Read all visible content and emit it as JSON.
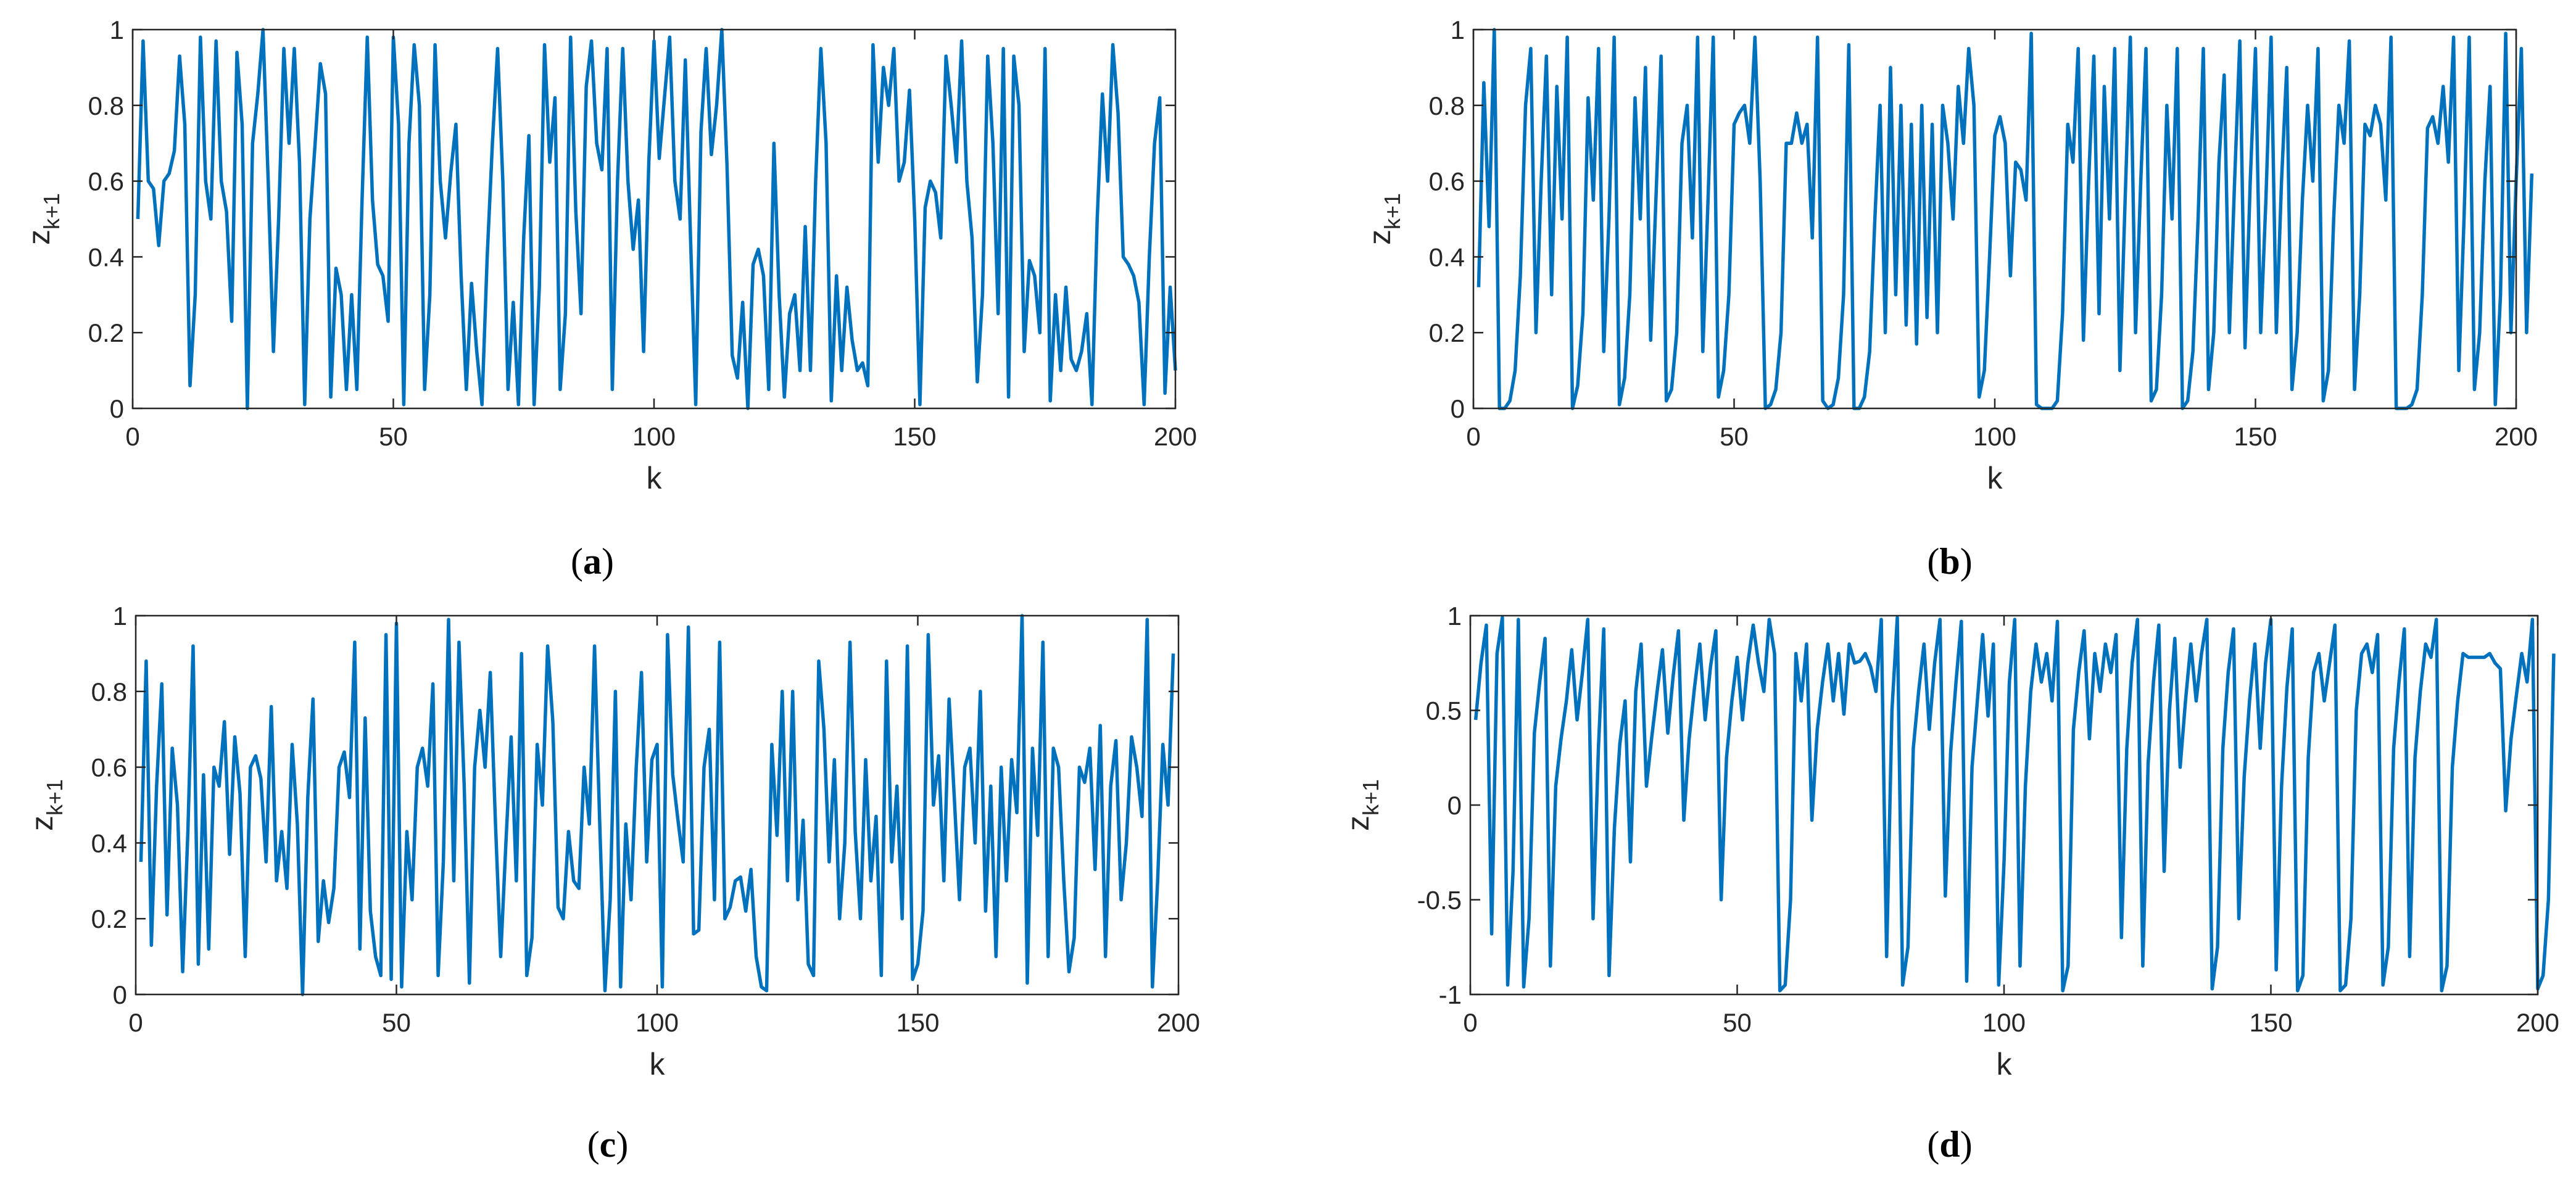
{
  "colors": {
    "series": "#0072BD",
    "axis": "#262626",
    "background": "#ffffff"
  },
  "chart_data": [
    {
      "id": "a",
      "panel_label": "a",
      "type": "line",
      "xlabel": "k",
      "ylabel_base": "z",
      "ylabel_sub": "k+1",
      "xlim": [
        0,
        200
      ],
      "ylim": [
        0,
        1
      ],
      "xticks": [
        0,
        50,
        100,
        150,
        200
      ],
      "xtick_labels": [
        "0",
        "50",
        "100",
        "150",
        "200"
      ],
      "yticks": [
        0,
        0.2,
        0.4,
        0.6,
        0.8,
        1
      ],
      "ytick_labels": [
        "0",
        "0.2",
        "0.4",
        "0.6",
        "0.8",
        "1"
      ],
      "grid": false,
      "series": [
        {
          "x_start": 1,
          "x_step": 1,
          "y": [
            0.5,
            0.97,
            0.6,
            0.58,
            0.43,
            0.6,
            0.62,
            0.68,
            0.93,
            0.75,
            0.06,
            0.3,
            0.98,
            0.6,
            0.5,
            0.97,
            0.6,
            0.52,
            0.23,
            0.94,
            0.75,
            0,
            0.7,
            0.83,
            1,
            0.6,
            0.15,
            0.5,
            0.95,
            0.7,
            0.95,
            0.65,
            0.01,
            0.5,
            0.7,
            0.91,
            0.83,
            0.03,
            0.37,
            0.3,
            0.05,
            0.3,
            0.05,
            0.55,
            0.98,
            0.55,
            0.38,
            0.35,
            0.23,
            0.98,
            0.75,
            0.01,
            0.7,
            0.96,
            0.8,
            0.05,
            0.3,
            0.96,
            0.6,
            0.45,
            0.62,
            0.75,
            0.35,
            0.05,
            0.33,
            0.15,
            0.01,
            0.4,
            0.7,
            0.95,
            0.6,
            0.05,
            0.28,
            0.01,
            0.45,
            0.72,
            0.01,
            0.32,
            0.96,
            0.65,
            0.82,
            0.05,
            0.25,
            0.98,
            0.52,
            0.25,
            0.85,
            0.97,
            0.7,
            0.63,
            0.95,
            0.05,
            0.6,
            0.95,
            0.6,
            0.42,
            0.55,
            0.15,
            0.65,
            0.97,
            0.66,
            0.82,
            0.98,
            0.6,
            0.5,
            0.92,
            0.45,
            0.01,
            0.73,
            0.95,
            0.67,
            0.8,
            1,
            0.64,
            0.14,
            0.08,
            0.28,
            0,
            0.38,
            0.42,
            0.35,
            0.05,
            0.7,
            0.3,
            0.03,
            0.25,
            0.3,
            0.1,
            0.48,
            0.1,
            0.6,
            0.95,
            0.7,
            0.02,
            0.35,
            0.1,
            0.32,
            0.18,
            0.1,
            0.12,
            0.06,
            0.96,
            0.65,
            0.9,
            0.8,
            0.95,
            0.6,
            0.65,
            0.84,
            0.5,
            0.01,
            0.53,
            0.6,
            0.57,
            0.45,
            0.93,
            0.8,
            0.65,
            0.97,
            0.6,
            0.45,
            0.07,
            0.3,
            0.93,
            0.7,
            0.25,
            0.95,
            0.03,
            0.93,
            0.8,
            0.15,
            0.39,
            0.35,
            0.2,
            0.95,
            0.02,
            0.3,
            0.1,
            0.32,
            0.13,
            0.1,
            0.15,
            0.25,
            0.01,
            0.5,
            0.83,
            0.6,
            0.96,
            0.78,
            0.4,
            0.38,
            0.35,
            0.28,
            0.01,
            0.4,
            0.7,
            0.82,
            0.04,
            0.32,
            0.1
          ]
        }
      ]
    },
    {
      "id": "b",
      "panel_label": "b",
      "type": "line",
      "xlabel": "k",
      "ylabel_base": "z",
      "ylabel_sub": "k+1",
      "xlim": [
        0,
        200
      ],
      "ylim": [
        0,
        1
      ],
      "xticks": [
        0,
        50,
        100,
        150,
        200
      ],
      "xtick_labels": [
        "0",
        "50",
        "100",
        "150",
        "200"
      ],
      "yticks": [
        0,
        0.2,
        0.4,
        0.6,
        0.8,
        1
      ],
      "ytick_labels": [
        "0",
        "0.2",
        "0.4",
        "0.6",
        "0.8",
        "1"
      ],
      "grid": false,
      "series": [
        {
          "x_start": 1,
          "x_step": 1,
          "y": [
            0.32,
            0.86,
            0.48,
            1,
            0,
            0,
            0.02,
            0.1,
            0.35,
            0.8,
            0.95,
            0.2,
            0.6,
            0.93,
            0.3,
            0.85,
            0.5,
            0.98,
            0,
            0.06,
            0.25,
            0.82,
            0.55,
            0.95,
            0.15,
            0.5,
            0.98,
            0.01,
            0.08,
            0.3,
            0.82,
            0.5,
            0.9,
            0.18,
            0.55,
            0.93,
            0.02,
            0.05,
            0.2,
            0.7,
            0.8,
            0.45,
            0.98,
            0.15,
            0.55,
            0.98,
            0.03,
            0.1,
            0.3,
            0.75,
            0.78,
            0.8,
            0.7,
            0.98,
            0.6,
            0,
            0.01,
            0.05,
            0.2,
            0.7,
            0.7,
            0.78,
            0.7,
            0.75,
            0.45,
            0.98,
            0.02,
            0,
            0.01,
            0.08,
            0.3,
            0.96,
            0,
            0,
            0.03,
            0.15,
            0.5,
            0.8,
            0.2,
            0.9,
            0.3,
            0.8,
            0.22,
            0.75,
            0.17,
            0.8,
            0.24,
            0.75,
            0.2,
            0.8,
            0.7,
            0.5,
            0.85,
            0.7,
            0.95,
            0.8,
            0.03,
            0.1,
            0.4,
            0.72,
            0.77,
            0.7,
            0.35,
            0.65,
            0.63,
            0.55,
            0.99,
            0.01,
            0,
            0,
            0,
            0.02,
            0.25,
            0.75,
            0.65,
            0.95,
            0.18,
            0.6,
            0.93,
            0.25,
            0.85,
            0.5,
            0.95,
            0.1,
            0.55,
            0.98,
            0.2,
            0.6,
            0.95,
            0.02,
            0.05,
            0.3,
            0.8,
            0.5,
            0.95,
            0,
            0.02,
            0.15,
            0.5,
            0.95,
            0.05,
            0.2,
            0.65,
            0.88,
            0.2,
            0.6,
            0.97,
            0.16,
            0.6,
            0.95,
            0.2,
            0.55,
            0.98,
            0.2,
            0.6,
            0.9,
            0.05,
            0.2,
            0.55,
            0.8,
            0.6,
            0.95,
            0.02,
            0.1,
            0.5,
            0.8,
            0.7,
            0.97,
            0.05,
            0.3,
            0.75,
            0.72,
            0.8,
            0.75,
            0.55,
            0.98,
            0,
            0,
            0,
            0.01,
            0.05,
            0.3,
            0.74,
            0.77,
            0.7,
            0.85,
            0.65,
            0.98,
            0.1,
            0.5,
            0.98,
            0.05,
            0.2,
            0.6,
            0.85,
            0.01,
            0.3,
            0.99,
            0.2,
            0.6,
            0.95,
            0.2,
            0.62
          ]
        }
      ]
    },
    {
      "id": "c",
      "panel_label": "c",
      "type": "line",
      "xlabel": "k",
      "ylabel_base": "z",
      "ylabel_sub": "k+1",
      "xlim": [
        0,
        200
      ],
      "ylim": [
        0,
        1
      ],
      "xticks": [
        0,
        50,
        100,
        150,
        200
      ],
      "xtick_labels": [
        "0",
        "50",
        "100",
        "150",
        "200"
      ],
      "yticks": [
        0,
        0.2,
        0.4,
        0.6,
        0.8,
        1
      ],
      "ytick_labels": [
        "0",
        "0.2",
        "0.4",
        "0.6",
        "0.8",
        "1"
      ],
      "grid": false,
      "series": [
        {
          "x_start": 1,
          "x_step": 1,
          "y": [
            0.35,
            0.88,
            0.13,
            0.55,
            0.82,
            0.21,
            0.65,
            0.5,
            0.06,
            0.43,
            0.92,
            0.08,
            0.58,
            0.12,
            0.6,
            0.55,
            0.72,
            0.37,
            0.68,
            0.53,
            0.1,
            0.6,
            0.63,
            0.57,
            0.35,
            0.76,
            0.3,
            0.43,
            0.28,
            0.66,
            0.45,
            0,
            0.52,
            0.78,
            0.14,
            0.3,
            0.19,
            0.28,
            0.6,
            0.64,
            0.52,
            0.93,
            0.12,
            0.73,
            0.22,
            0.1,
            0.05,
            0.95,
            0.04,
            0.98,
            0.02,
            0.43,
            0.25,
            0.6,
            0.65,
            0.55,
            0.82,
            0.05,
            0.35,
            0.99,
            0.3,
            0.93,
            0.55,
            0.03,
            0.6,
            0.75,
            0.6,
            0.85,
            0.45,
            0.1,
            0.4,
            0.68,
            0.3,
            0.9,
            0.05,
            0.15,
            0.66,
            0.5,
            0.92,
            0.72,
            0.23,
            0.2,
            0.43,
            0.3,
            0.28,
            0.6,
            0.45,
            0.92,
            0.45,
            0.01,
            0.25,
            0.8,
            0.02,
            0.45,
            0.25,
            0.6,
            0.85,
            0.35,
            0.62,
            0.66,
            0.02,
            0.95,
            0.58,
            0.46,
            0.35,
            0.97,
            0.16,
            0.17,
            0.6,
            0.7,
            0.25,
            0.93,
            0.2,
            0.23,
            0.3,
            0.31,
            0.22,
            0.33,
            0.1,
            0.02,
            0.01,
            0.66,
            0.42,
            0.8,
            0.3,
            0.8,
            0.25,
            0.46,
            0.08,
            0.05,
            0.88,
            0.7,
            0.35,
            0.62,
            0.2,
            0.4,
            0.93,
            0.43,
            0.2,
            0.62,
            0.3,
            0.47,
            0.05,
            0.88,
            0.35,
            0.55,
            0.2,
            0.92,
            0.04,
            0.08,
            0.22,
            0.95,
            0.5,
            0.63,
            0.3,
            0.78,
            0.52,
            0.25,
            0.6,
            0.65,
            0.4,
            0.8,
            0.22,
            0.55,
            0.1,
            0.6,
            0.3,
            0.62,
            0.48,
            1,
            0.03,
            0.65,
            0.42,
            0.93,
            0.1,
            0.65,
            0.6,
            0.3,
            0.06,
            0.15,
            0.6,
            0.56,
            0.65,
            0.33,
            0.71,
            0.1,
            0.55,
            0.67,
            0.25,
            0.4,
            0.68,
            0.6,
            0.47,
            0.99,
            0.02,
            0.3,
            0.66,
            0.5,
            0.9
          ]
        }
      ]
    },
    {
      "id": "d",
      "panel_label": "d",
      "type": "line",
      "xlabel": "k",
      "ylabel_base": "z",
      "ylabel_sub": "k+1",
      "xlim": [
        0,
        200
      ],
      "ylim": [
        -1,
        1
      ],
      "xticks": [
        0,
        50,
        100,
        150,
        200
      ],
      "xtick_labels": [
        "0",
        "50",
        "100",
        "150",
        "200"
      ],
      "yticks": [
        -1,
        -0.5,
        0,
        0.5,
        1
      ],
      "ytick_labels": [
        "-1",
        "-0.5",
        "0",
        "0.5",
        "1"
      ],
      "grid": false,
      "series": [
        {
          "x_start": 1,
          "x_step": 1,
          "y": [
            0.45,
            0.75,
            0.95,
            -0.68,
            0.8,
            0.99,
            -0.95,
            -0.35,
            0.98,
            -0.96,
            -0.6,
            0.38,
            0.65,
            0.88,
            -0.85,
            0.1,
            0.35,
            0.55,
            0.82,
            0.45,
            0.7,
            0.98,
            -0.6,
            0.3,
            0.93,
            -0.9,
            -0.12,
            0.32,
            0.55,
            -0.3,
            0.6,
            0.85,
            0.1,
            0.36,
            0.6,
            0.82,
            0.38,
            0.68,
            0.92,
            -0.08,
            0.35,
            0.62,
            0.85,
            0.45,
            0.73,
            0.92,
            -0.5,
            0.25,
            0.55,
            0.78,
            0.45,
            0.75,
            0.95,
            0.75,
            0.6,
            0.98,
            0.8,
            -0.98,
            -0.95,
            -0.5,
            0.8,
            0.55,
            0.85,
            -0.08,
            0.4,
            0.65,
            0.85,
            0.55,
            0.8,
            0.48,
            0.85,
            0.75,
            0.76,
            0.8,
            0.73,
            0.6,
            0.98,
            -0.8,
            0.5,
            0.99,
            -0.95,
            -0.75,
            0.3,
            0.6,
            0.85,
            0.4,
            0.75,
            0.98,
            -0.48,
            0.28,
            0.65,
            0.97,
            -0.93,
            0.2,
            0.55,
            0.9,
            0.47,
            0.85,
            -0.95,
            -0.3,
            0.65,
            0.98,
            -0.85,
            0.1,
            0.6,
            0.85,
            0.65,
            0.8,
            0.55,
            0.97,
            -0.98,
            -0.85,
            0.4,
            0.7,
            0.92,
            0.35,
            0.8,
            0.6,
            0.85,
            0.7,
            0.9,
            -0.7,
            0.3,
            0.75,
            0.98,
            -0.85,
            0.22,
            0.65,
            0.95,
            -0.35,
            0.5,
            0.88,
            0.2,
            0.55,
            0.85,
            0.55,
            0.8,
            0.98,
            -0.97,
            -0.75,
            0.3,
            0.7,
            0.93,
            -0.6,
            0.15,
            0.55,
            0.85,
            0.3,
            0.75,
            0.98,
            -0.87,
            0.1,
            0.62,
            0.93,
            -0.98,
            -0.9,
            0.25,
            0.7,
            0.8,
            0.55,
            0.75,
            0.95,
            -0.98,
            -0.95,
            -0.6,
            0.5,
            0.8,
            0.85,
            0.7,
            0.9,
            -0.95,
            -0.75,
            0.3,
            0.65,
            0.93,
            -0.8,
            0.25,
            0.6,
            0.85,
            0.78,
            0.98,
            -0.98,
            -0.85,
            0.2,
            0.55,
            0.8,
            0.78,
            0.78,
            0.78,
            0.78,
            0.8,
            0.75,
            0.72,
            -0.03,
            0.35,
            0.58,
            0.8,
            0.65,
            0.98,
            -0.97,
            -0.9,
            -0.5,
            0.8
          ]
        }
      ]
    }
  ]
}
